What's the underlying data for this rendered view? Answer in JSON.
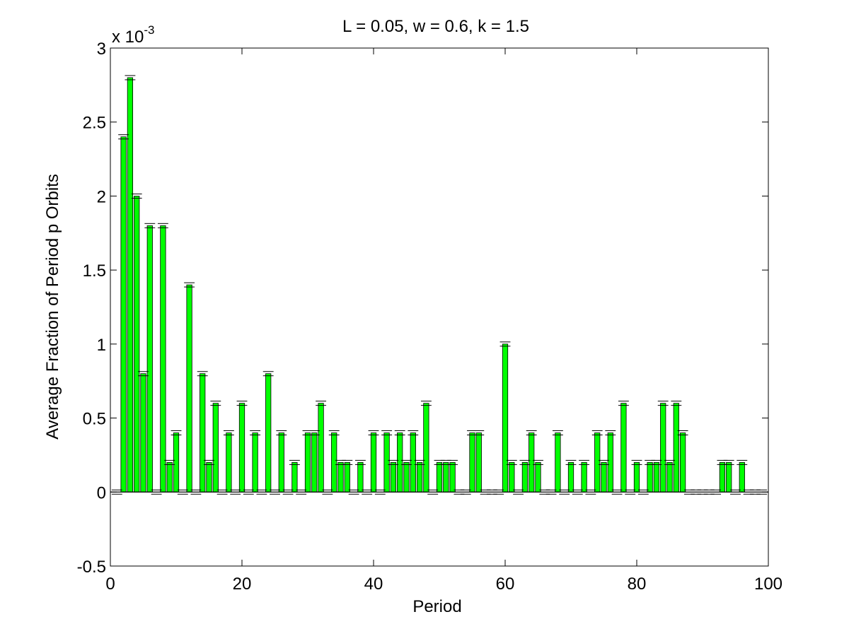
{
  "chart_data": {
    "type": "bar",
    "title": "L = 0.05, w = 0.6, k = 1.5",
    "xlabel": "Period",
    "ylabel": "Average Fraction of Period p Orbits",
    "exponent_label": "x 10",
    "exponent_power": "-3",
    "xlim": [
      0,
      100
    ],
    "ylim": [
      -0.5,
      3
    ],
    "y_scale_factor": 0.001,
    "xticks": [
      0,
      20,
      40,
      60,
      80,
      100
    ],
    "xtick_labels": [
      "0",
      "20",
      "40",
      "60",
      "80",
      "100"
    ],
    "yticks": [
      -0.5,
      0,
      0.5,
      1,
      1.5,
      2,
      2.5,
      3
    ],
    "ytick_labels": [
      "-0.5",
      "0",
      "0.5",
      "1",
      "1.5",
      "2",
      "2.5",
      "3"
    ],
    "bar_color": "#00ff00",
    "errorbar_color": "#000000",
    "grid": false,
    "legend": "none",
    "periods": [
      1,
      2,
      3,
      4,
      5,
      6,
      7,
      8,
      9,
      10,
      11,
      12,
      13,
      14,
      15,
      16,
      17,
      18,
      19,
      20,
      21,
      22,
      23,
      24,
      25,
      26,
      27,
      28,
      29,
      30,
      31,
      32,
      33,
      34,
      35,
      36,
      37,
      38,
      39,
      40,
      41,
      42,
      43,
      44,
      45,
      46,
      47,
      48,
      49,
      50,
      51,
      52,
      53,
      54,
      55,
      56,
      57,
      58,
      59,
      60,
      61,
      62,
      63,
      64,
      65,
      66,
      67,
      68,
      69,
      70,
      71,
      72,
      73,
      74,
      75,
      76,
      77,
      78,
      79,
      80,
      81,
      82,
      83,
      84,
      85,
      86,
      87,
      88,
      89,
      90,
      91,
      92,
      93,
      94,
      95,
      96,
      97,
      98,
      99
    ],
    "values": [
      0,
      2.4,
      2.8,
      2.0,
      0.8,
      1.8,
      0,
      1.8,
      0.2,
      0.4,
      0,
      1.4,
      0,
      0.8,
      0.2,
      0.6,
      0,
      0.4,
      0,
      0.6,
      0,
      0.4,
      0,
      0.8,
      0,
      0.4,
      0,
      0.2,
      0,
      0.4,
      0.4,
      0.6,
      0,
      0.4,
      0.2,
      0.2,
      0,
      0.2,
      0,
      0.4,
      0,
      0.4,
      0.2,
      0.4,
      0.2,
      0.4,
      0.2,
      0.6,
      0,
      0.2,
      0.2,
      0.2,
      0,
      0,
      0.4,
      0.4,
      0,
      0,
      0,
      1.0,
      0.2,
      0,
      0.2,
      0.4,
      0.2,
      0,
      0,
      0.4,
      0,
      0.2,
      0,
      0.2,
      0,
      0.4,
      0.2,
      0.4,
      0,
      0.6,
      0,
      0.2,
      0,
      0.2,
      0.2,
      0.6,
      0.2,
      0.6,
      0.4,
      0,
      0,
      0,
      0,
      0,
      0.2,
      0.2,
      0,
      0.2,
      0,
      0,
      0
    ]
  }
}
